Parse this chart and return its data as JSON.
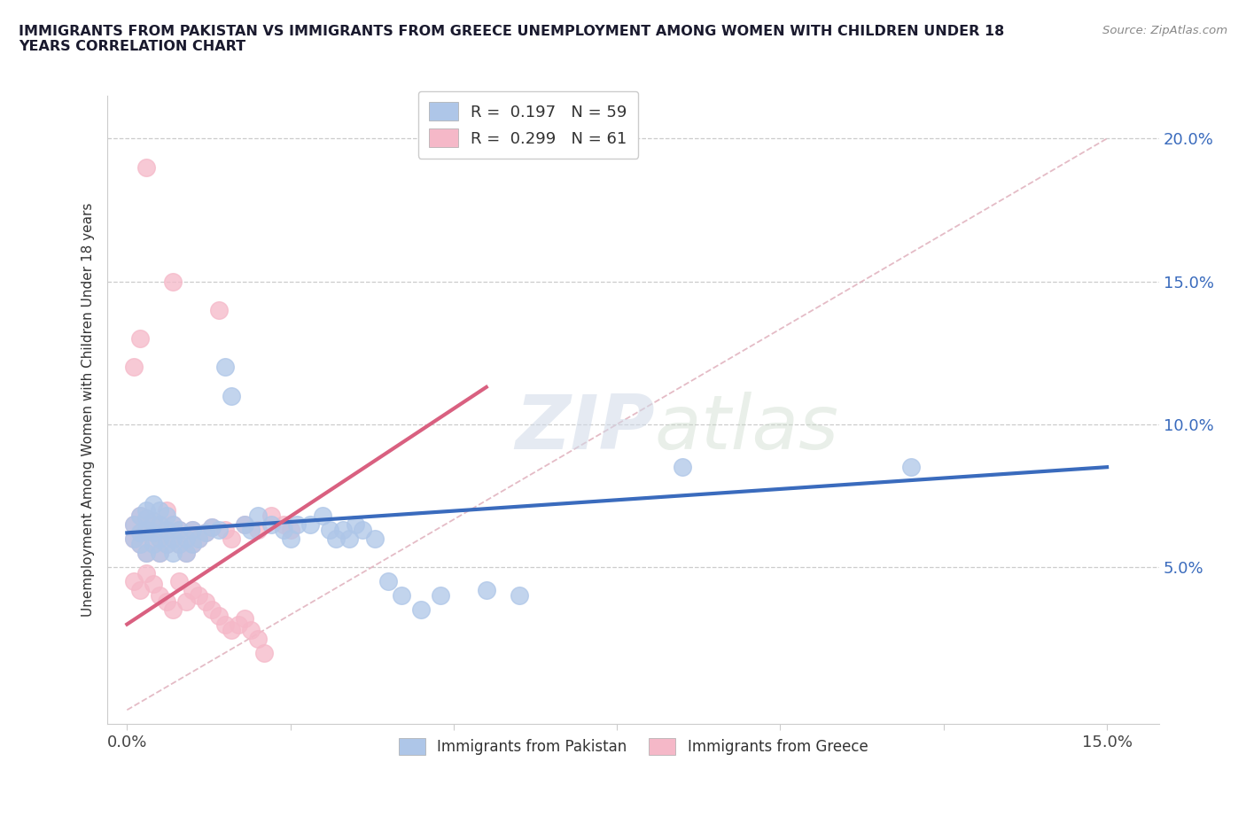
{
  "title": "IMMIGRANTS FROM PAKISTAN VS IMMIGRANTS FROM GREECE UNEMPLOYMENT AMONG WOMEN WITH CHILDREN UNDER 18\nYEARS CORRELATION CHART",
  "source": "Source: ZipAtlas.com",
  "ylabel": "Unemployment Among Women with Children Under 18 years",
  "pakistan_R": 0.197,
  "pakistan_N": 59,
  "greece_R": 0.299,
  "greece_N": 61,
  "xlim": [
    -0.003,
    0.158
  ],
  "ylim": [
    -0.005,
    0.215
  ],
  "pakistan_color": "#aec6e8",
  "greece_color": "#f5b8c8",
  "pakistan_line_color": "#3a6bbd",
  "greece_line_color": "#d96080",
  "diagonal_color": "#e0b0bc",
  "watermark_zip": "ZIP",
  "watermark_atlas": "atlas",
  "pakistan_line_x0": 0.0,
  "pakistan_line_y0": 0.062,
  "pakistan_line_x1": 0.15,
  "pakistan_line_y1": 0.085,
  "greece_line_x0": 0.0,
  "greece_line_y0": 0.03,
  "greece_line_x1": 0.055,
  "greece_line_y1": 0.113,
  "pakistan_scatter_x": [
    0.001,
    0.001,
    0.002,
    0.002,
    0.002,
    0.003,
    0.003,
    0.003,
    0.003,
    0.004,
    0.004,
    0.004,
    0.004,
    0.005,
    0.005,
    0.005,
    0.005,
    0.006,
    0.006,
    0.006,
    0.007,
    0.007,
    0.007,
    0.008,
    0.008,
    0.009,
    0.009,
    0.01,
    0.01,
    0.011,
    0.012,
    0.013,
    0.014,
    0.015,
    0.016,
    0.018,
    0.019,
    0.02,
    0.022,
    0.024,
    0.025,
    0.026,
    0.028,
    0.03,
    0.031,
    0.032,
    0.033,
    0.034,
    0.035,
    0.036,
    0.038,
    0.04,
    0.042,
    0.045,
    0.048,
    0.055,
    0.06,
    0.085,
    0.12
  ],
  "pakistan_scatter_y": [
    0.06,
    0.065,
    0.058,
    0.062,
    0.068,
    0.055,
    0.063,
    0.067,
    0.07,
    0.058,
    0.062,
    0.066,
    0.072,
    0.055,
    0.06,
    0.065,
    0.07,
    0.058,
    0.063,
    0.068,
    0.055,
    0.06,
    0.065,
    0.058,
    0.063,
    0.055,
    0.06,
    0.058,
    0.063,
    0.06,
    0.062,
    0.064,
    0.063,
    0.12,
    0.11,
    0.065,
    0.063,
    0.068,
    0.065,
    0.063,
    0.06,
    0.065,
    0.065,
    0.068,
    0.063,
    0.06,
    0.063,
    0.06,
    0.065,
    0.063,
    0.06,
    0.045,
    0.04,
    0.035,
    0.04,
    0.042,
    0.04,
    0.085,
    0.085
  ],
  "greece_scatter_x": [
    0.001,
    0.001,
    0.001,
    0.002,
    0.002,
    0.002,
    0.002,
    0.003,
    0.003,
    0.003,
    0.003,
    0.004,
    0.004,
    0.004,
    0.005,
    0.005,
    0.005,
    0.006,
    0.006,
    0.006,
    0.007,
    0.007,
    0.007,
    0.008,
    0.008,
    0.009,
    0.009,
    0.01,
    0.01,
    0.011,
    0.012,
    0.013,
    0.014,
    0.015,
    0.016,
    0.018,
    0.02,
    0.022,
    0.024,
    0.025,
    0.001,
    0.002,
    0.003,
    0.004,
    0.005,
    0.006,
    0.007,
    0.008,
    0.009,
    0.01,
    0.011,
    0.012,
    0.013,
    0.014,
    0.015,
    0.016,
    0.017,
    0.018,
    0.019,
    0.02,
    0.021
  ],
  "greece_scatter_y": [
    0.06,
    0.065,
    0.12,
    0.058,
    0.062,
    0.068,
    0.13,
    0.055,
    0.063,
    0.067,
    0.19,
    0.058,
    0.062,
    0.066,
    0.055,
    0.06,
    0.065,
    0.07,
    0.058,
    0.063,
    0.15,
    0.06,
    0.065,
    0.058,
    0.063,
    0.055,
    0.06,
    0.058,
    0.063,
    0.06,
    0.062,
    0.064,
    0.14,
    0.063,
    0.06,
    0.065,
    0.063,
    0.068,
    0.065,
    0.063,
    0.045,
    0.042,
    0.048,
    0.044,
    0.04,
    0.038,
    0.035,
    0.045,
    0.038,
    0.042,
    0.04,
    0.038,
    0.035,
    0.033,
    0.03,
    0.028,
    0.03,
    0.032,
    0.028,
    0.025,
    0.02
  ]
}
